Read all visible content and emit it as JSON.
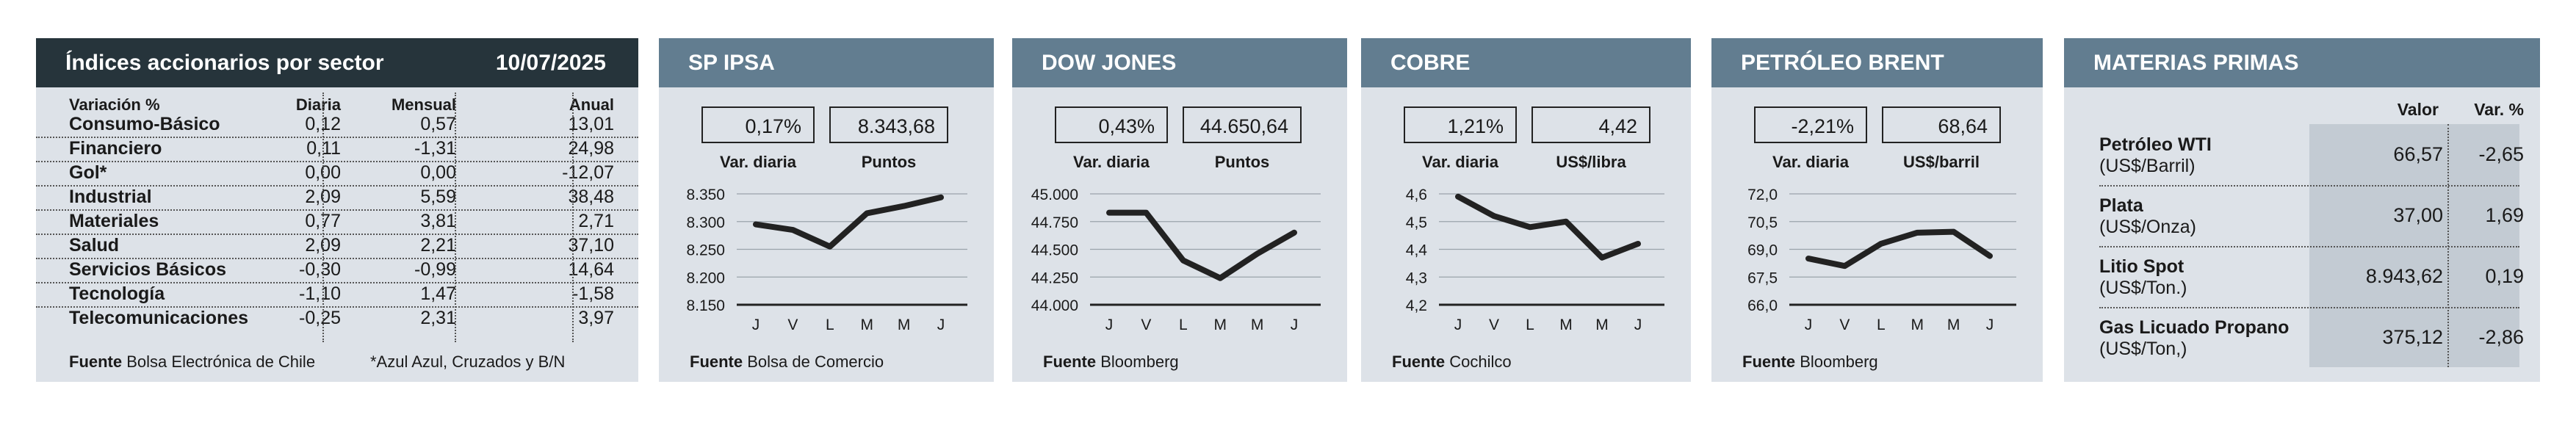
{
  "sector_table": {
    "title": "Índices accionarios por sector",
    "date": "10/07/2025",
    "headers": [
      "Variación %",
      "Diaria",
      "Mensual",
      "Anual"
    ],
    "rows": [
      [
        "Consumo-Básico",
        "0,12",
        "0,57",
        "13,01"
      ],
      [
        "Financiero",
        "0,11",
        "-1,31",
        "24,98"
      ],
      [
        "Gol*",
        "0,00",
        "0,00",
        "-12,07"
      ],
      [
        "Industrial",
        "2,09",
        "5,59",
        "38,48"
      ],
      [
        "Materiales",
        "0,77",
        "3,81",
        "2,71"
      ],
      [
        "Salud",
        "2,09",
        "2,21",
        "37,10"
      ],
      [
        "Servicios Básicos",
        "-0,30",
        "-0,99",
        "14,64"
      ],
      [
        "Tecnología",
        "-1,10",
        "1,47",
        "-1,58"
      ],
      [
        "Telecomunicaciones",
        "-0,25",
        "2,31",
        "3,97"
      ]
    ],
    "fuente_label": "Fuente",
    "fuente": "Bolsa Electrónica de Chile",
    "note": "*Azul Azul, Cruzados y B/N"
  },
  "panels": [
    {
      "title": "SP IPSA",
      "var": "0,17%",
      "value": "8.343,68",
      "var_label": "Var. diaria",
      "value_label": "Puntos",
      "fuente_label": "Fuente",
      "fuente": "Bolsa de Comercio"
    },
    {
      "title": "DOW JONES",
      "var": "0,43%",
      "value": "44.650,64",
      "var_label": "Var. diaria",
      "value_label": "Puntos",
      "fuente_label": "Fuente",
      "fuente": "Bloomberg"
    },
    {
      "title": "COBRE",
      "var": "1,21%",
      "value": "4,42",
      "var_label": "Var. diaria",
      "value_label": "US$/libra",
      "fuente_label": "Fuente",
      "fuente": "Cochilco"
    },
    {
      "title": "PETRÓLEO BRENT",
      "var": "-2,21%",
      "value": "68,64",
      "var_label": "Var. diaria",
      "value_label": "US$/barril",
      "fuente_label": "Fuente",
      "fuente": "Bloomberg"
    }
  ],
  "chart_data": [
    {
      "type": "line",
      "title": "SP IPSA",
      "x": [
        "J",
        "V",
        "L",
        "M",
        "M",
        "J"
      ],
      "values": [
        8295,
        8285,
        8255,
        8315,
        8328,
        8343.68
      ],
      "ylim": [
        8150,
        8350
      ],
      "yticks": [
        "8.150",
        "8.200",
        "8.250",
        "8.300",
        "8.350"
      ],
      "grid": true,
      "line_color": "#222222"
    },
    {
      "type": "line",
      "title": "DOW JONES",
      "x": [
        "J",
        "V",
        "L",
        "M",
        "M",
        "J"
      ],
      "values": [
        44830,
        44830,
        44400,
        44240,
        44460,
        44650.64
      ],
      "ylim": [
        44000,
        45000
      ],
      "yticks": [
        "44.000",
        "44.250",
        "44.500",
        "44.750",
        "45.000"
      ],
      "grid": true,
      "line_color": "#222222"
    },
    {
      "type": "line",
      "title": "COBRE",
      "x": [
        "J",
        "V",
        "L",
        "M",
        "M",
        "J"
      ],
      "values": [
        4.59,
        4.52,
        4.48,
        4.5,
        4.37,
        4.42
      ],
      "ylim": [
        4.2,
        4.6
      ],
      "yticks": [
        "4,2",
        "4,3",
        "4,4",
        "4,5",
        "4,6"
      ],
      "grid": true,
      "line_color": "#222222"
    },
    {
      "type": "line",
      "title": "PETRÓLEO BRENT",
      "x": [
        "J",
        "V",
        "L",
        "M",
        "M",
        "J"
      ],
      "values": [
        68.5,
        68.1,
        69.3,
        69.9,
        69.95,
        68.64
      ],
      "ylim": [
        66.0,
        72.0
      ],
      "yticks": [
        "66,0",
        "67,5",
        "69,0",
        "70,5",
        "72,0"
      ],
      "grid": true,
      "line_color": "#222222"
    }
  ],
  "materias": {
    "title": "MATERIAS PRIMAS",
    "headers": [
      "Valor",
      "Var. %"
    ],
    "rows": [
      {
        "name": "Petróleo WTI",
        "unit": "(US$/Barril)",
        "value": "66,57",
        "var": "-2,65"
      },
      {
        "name": "Plata",
        "unit": "(US$/Onza)",
        "value": "37,00",
        "var": "1,69"
      },
      {
        "name": "Litio Spot",
        "unit": "(US$/Ton.)",
        "value": "8.943,62",
        "var": "0,19"
      },
      {
        "name": "Gas Licuado Propano",
        "unit": "(US$/Ton,)",
        "value": "375,12",
        "var": "-2,86"
      }
    ]
  }
}
